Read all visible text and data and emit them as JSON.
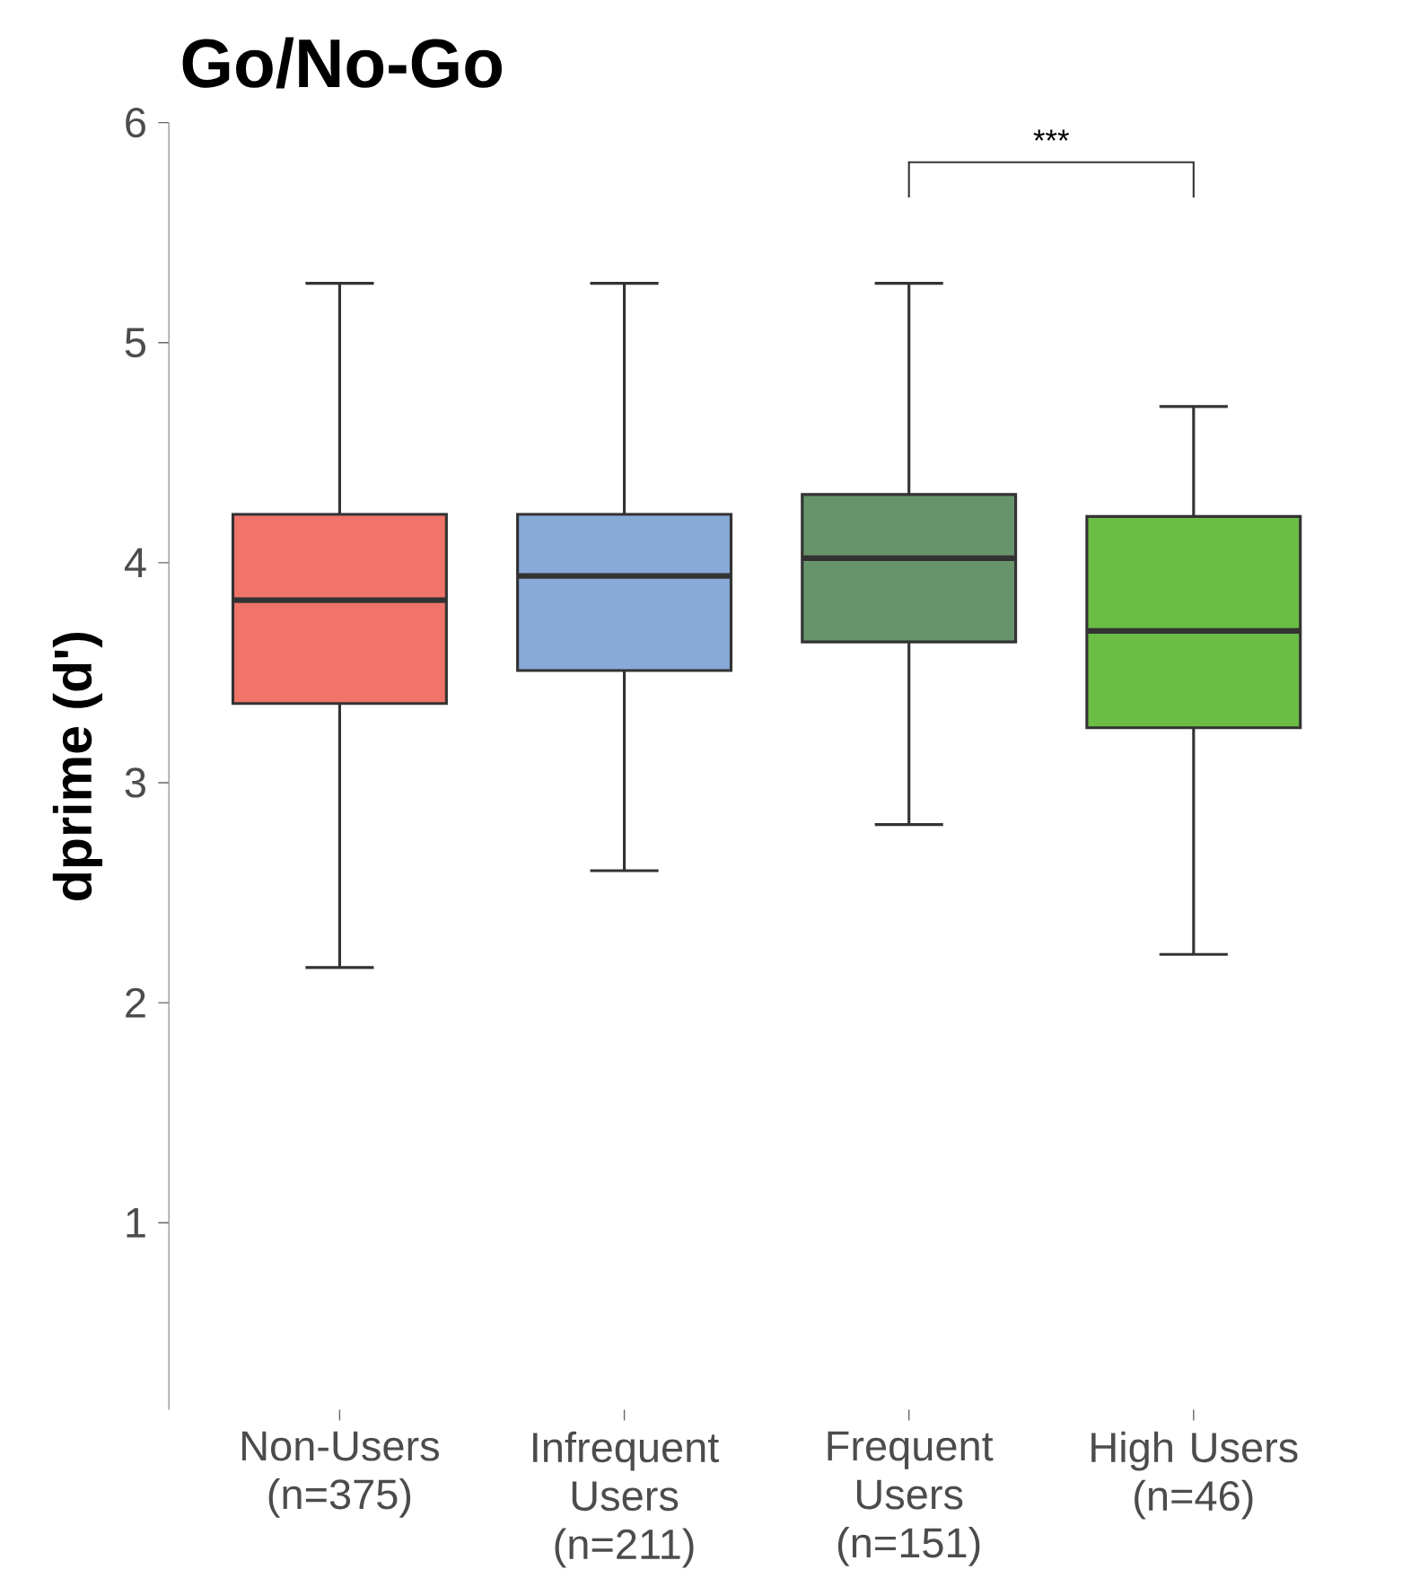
{
  "chart_data": {
    "type": "box",
    "title": "Go/No-Go",
    "ylabel": "dprime (d')",
    "categories": [
      "Non-Users (n=375)",
      "Infrequent Users (n=211)",
      "Frequent Users (n=151)",
      "High Users (n=46)"
    ],
    "colors": [
      "#f0746a",
      "#87aad8",
      "#67946a",
      "#6bbd45"
    ],
    "boxes": [
      {
        "low": 2.16,
        "q1": 3.36,
        "median": 3.83,
        "q3": 4.22,
        "high": 5.27
      },
      {
        "low": 2.6,
        "q1": 3.51,
        "median": 3.94,
        "q3": 4.22,
        "high": 5.27
      },
      {
        "low": 2.81,
        "q1": 3.64,
        "median": 4.02,
        "q3": 4.31,
        "high": 5.27
      },
      {
        "low": 2.22,
        "q1": 3.25,
        "median": 3.69,
        "q3": 4.21,
        "high": 4.71
      }
    ],
    "ylim": [
      0.15,
      6.0
    ],
    "yticks": [
      1,
      2,
      3,
      4,
      5,
      6
    ],
    "annotations": [
      "***"
    ]
  }
}
